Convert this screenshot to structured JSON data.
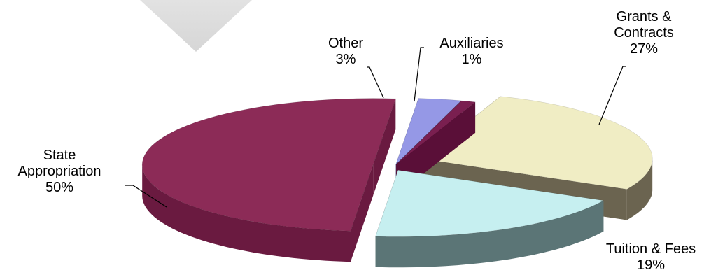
{
  "chart_data": {
    "type": "pie",
    "categories": [
      "Grants & Contracts",
      "Tuition & Fees",
      "State Appropriation",
      "Other",
      "Auxiliaries"
    ],
    "values": [
      27,
      19,
      50,
      3,
      1
    ],
    "unit": "%",
    "labels": [
      {
        "lines": [
          "Grants &",
          "Contracts",
          "27%"
        ]
      },
      {
        "lines": [
          "Tuition & Fees",
          "19%"
        ]
      },
      {
        "lines": [
          "State",
          "Appropriation",
          "50%"
        ]
      },
      {
        "lines": [
          "Other",
          "3%"
        ]
      },
      {
        "lines": [
          "Auxiliaries",
          "1%"
        ]
      }
    ],
    "colors": {
      "top": [
        "#f0edc4",
        "#c6eff0",
        "#8c2b57",
        "#9598e6",
        "#7a1f50"
      ],
      "side": [
        "#6b6450",
        "#5b7576",
        "#6a1a40",
        "#3a3d6e",
        "#5a0f38"
      ]
    },
    "title": "",
    "legend": "none",
    "exploded": true,
    "perspective": "3d"
  }
}
